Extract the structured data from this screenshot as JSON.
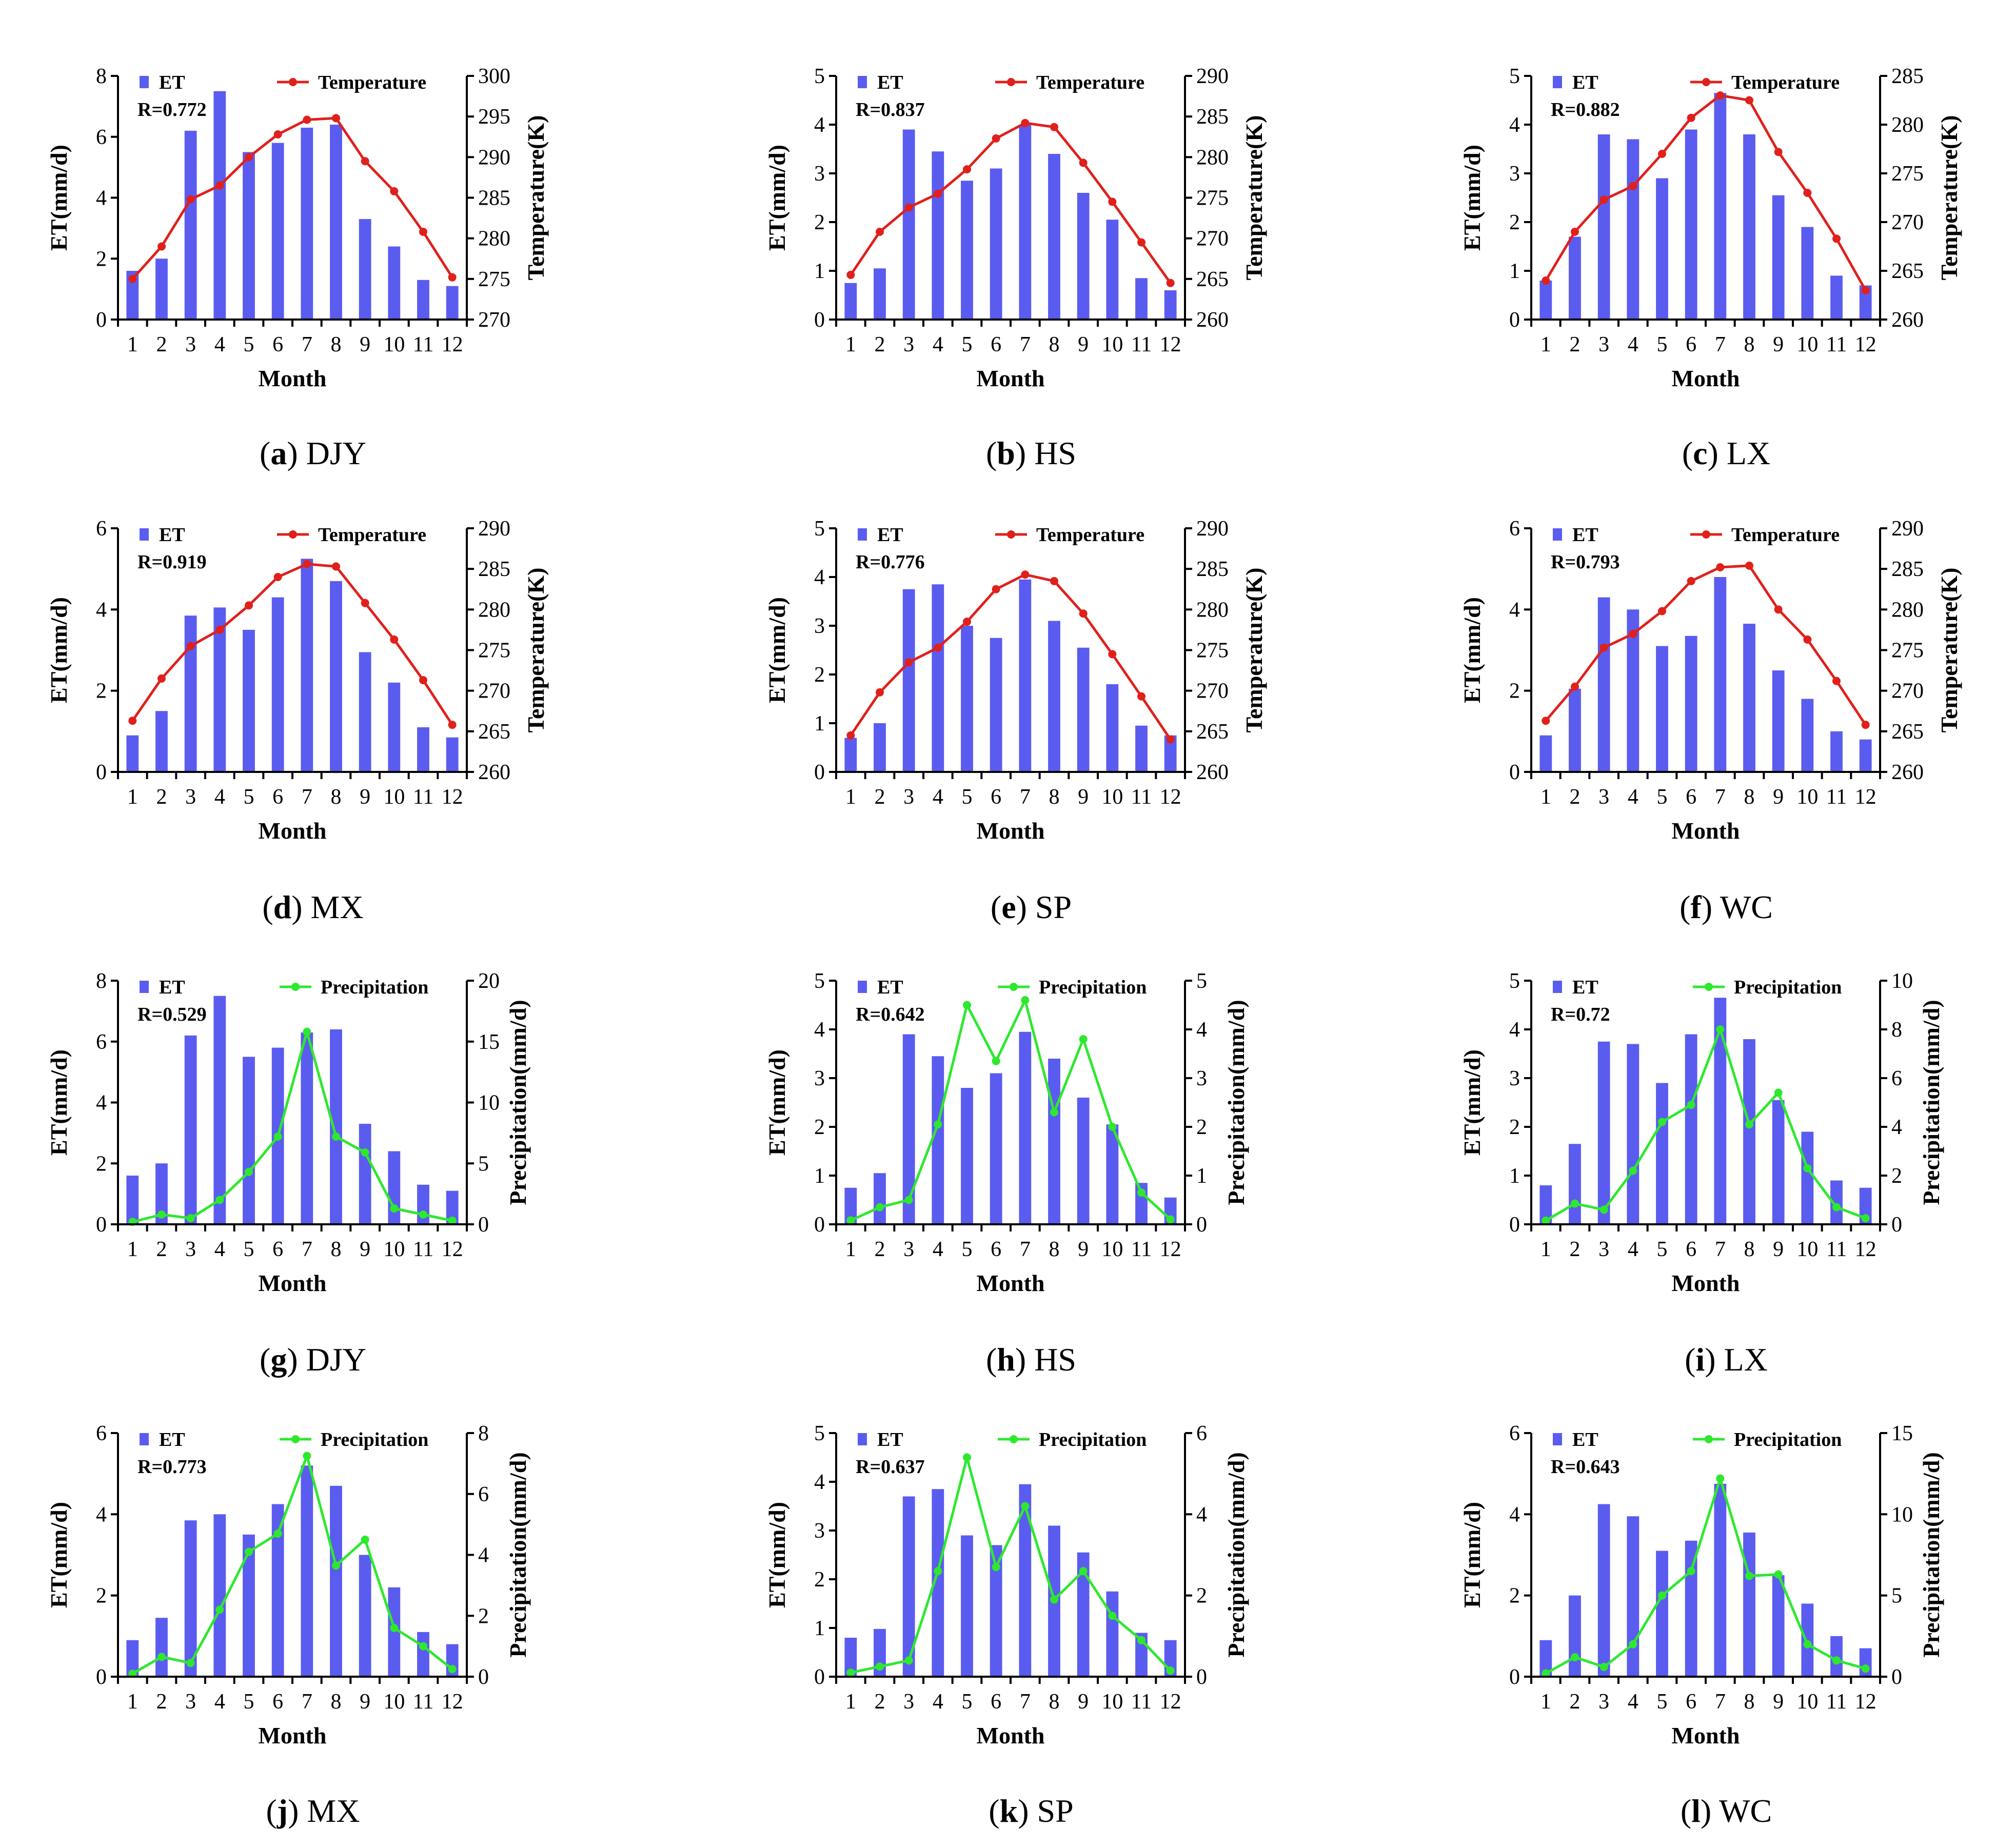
{
  "figure": {
    "colors": {
      "et_bar": "#5a5cf0",
      "temperature_line": "#e0201b",
      "precipitation_line": "#2ee82e",
      "axis": "#000000"
    }
  },
  "chart_data": [
    {
      "type": "bar",
      "panel": "a",
      "site": "DJY",
      "r_label": "R=0.772",
      "categories": [
        "1",
        "2",
        "3",
        "4",
        "5",
        "6",
        "7",
        "8",
        "9",
        "10",
        "11",
        "12"
      ],
      "xlabel": "Month",
      "ylabel": "ET(mm/d)",
      "y2label": "Temperature(K)",
      "ylim": [
        0,
        8
      ],
      "yticks": [
        "0",
        "2",
        "4",
        "6",
        "8"
      ],
      "y2lim": [
        270,
        300
      ],
      "y2ticks": [
        "270",
        "275",
        "280",
        "285",
        "290",
        "295",
        "300"
      ],
      "series": [
        {
          "name": "ET",
          "kind": "bar",
          "axis": "left",
          "values": [
            1.6,
            2.0,
            6.2,
            7.5,
            5.5,
            5.8,
            6.3,
            6.4,
            3.3,
            2.4,
            1.3,
            1.1
          ]
        },
        {
          "name": "Temperature",
          "kind": "line",
          "axis": "right",
          "values": [
            275.0,
            279.0,
            284.8,
            286.5,
            290.0,
            292.8,
            294.6,
            294.8,
            289.5,
            285.8,
            280.8,
            275.2
          ]
        }
      ]
    },
    {
      "type": "bar",
      "panel": "b",
      "site": "HS",
      "r_label": "R=0.837",
      "categories": [
        "1",
        "2",
        "3",
        "4",
        "5",
        "6",
        "7",
        "8",
        "9",
        "10",
        "11",
        "12"
      ],
      "xlabel": "Month",
      "ylabel": "ET(mm/d)",
      "y2label": "Temperature(K)",
      "ylim": [
        0,
        5
      ],
      "yticks": [
        "0",
        "1",
        "2",
        "3",
        "4",
        "5"
      ],
      "y2lim": [
        260,
        290
      ],
      "y2ticks": [
        "260",
        "265",
        "270",
        "275",
        "280",
        "285",
        "290"
      ],
      "series": [
        {
          "name": "ET",
          "kind": "bar",
          "axis": "left",
          "values": [
            0.75,
            1.05,
            3.9,
            3.45,
            2.85,
            3.1,
            4.0,
            3.4,
            2.6,
            2.05,
            0.85,
            0.6
          ]
        },
        {
          "name": "Temperature",
          "kind": "line",
          "axis": "right",
          "values": [
            265.5,
            270.8,
            273.8,
            275.5,
            278.5,
            282.3,
            284.2,
            283.7,
            279.3,
            274.5,
            269.5,
            264.5
          ]
        }
      ]
    },
    {
      "type": "bar",
      "panel": "c",
      "site": "LX",
      "r_label": "R=0.882",
      "categories": [
        "1",
        "2",
        "3",
        "4",
        "5",
        "6",
        "7",
        "8",
        "9",
        "10",
        "11",
        "12"
      ],
      "xlabel": "Month",
      "ylabel": "ET(mm/d)",
      "y2label": "Temperature(K)",
      "ylim": [
        0,
        5
      ],
      "yticks": [
        "0",
        "1",
        "2",
        "3",
        "4",
        "5"
      ],
      "y2lim": [
        260,
        285
      ],
      "y2ticks": [
        "260",
        "265",
        "270",
        "275",
        "280",
        "285"
      ],
      "series": [
        {
          "name": "ET",
          "kind": "bar",
          "axis": "left",
          "values": [
            0.8,
            1.7,
            3.8,
            3.7,
            2.9,
            3.9,
            4.65,
            3.8,
            2.55,
            1.9,
            0.9,
            0.7
          ]
        },
        {
          "name": "Temperature",
          "kind": "line",
          "axis": "right",
          "values": [
            264.0,
            269.0,
            272.3,
            273.7,
            277.0,
            280.7,
            283.0,
            282.5,
            277.2,
            273.0,
            268.3,
            263.0
          ]
        }
      ]
    },
    {
      "type": "bar",
      "panel": "d",
      "site": "MX",
      "r_label": "R=0.919",
      "categories": [
        "1",
        "2",
        "3",
        "4",
        "5",
        "6",
        "7",
        "8",
        "9",
        "10",
        "11",
        "12"
      ],
      "xlabel": "Month",
      "ylabel": "ET(mm/d)",
      "y2label": "Temperature(K)",
      "ylim": [
        0,
        6
      ],
      "yticks": [
        "0",
        "2",
        "4",
        "6"
      ],
      "y2lim": [
        260,
        290
      ],
      "y2ticks": [
        "260",
        "265",
        "270",
        "275",
        "280",
        "285",
        "290"
      ],
      "series": [
        {
          "name": "ET",
          "kind": "bar",
          "axis": "left",
          "values": [
            0.9,
            1.5,
            3.85,
            4.05,
            3.5,
            4.3,
            5.25,
            4.7,
            2.95,
            2.2,
            1.1,
            0.85
          ]
        },
        {
          "name": "Temperature",
          "kind": "line",
          "axis": "right",
          "values": [
            266.3,
            271.5,
            275.5,
            277.5,
            280.5,
            284.0,
            285.6,
            285.3,
            280.8,
            276.3,
            271.3,
            265.8
          ]
        }
      ]
    },
    {
      "type": "bar",
      "panel": "e",
      "site": "SP",
      "r_label": "R=0.776",
      "categories": [
        "1",
        "2",
        "3",
        "4",
        "5",
        "6",
        "7",
        "8",
        "9",
        "10",
        "11",
        "12"
      ],
      "xlabel": "Month",
      "ylabel": "ET(mm/d)",
      "y2label": "Temperature(K)",
      "ylim": [
        0,
        5
      ],
      "yticks": [
        "0",
        "1",
        "2",
        "3",
        "4",
        "5"
      ],
      "y2lim": [
        260,
        290
      ],
      "y2ticks": [
        "260",
        "265",
        "270",
        "275",
        "280",
        "285",
        "290"
      ],
      "series": [
        {
          "name": "ET",
          "kind": "bar",
          "axis": "left",
          "values": [
            0.7,
            1.0,
            3.75,
            3.85,
            3.0,
            2.75,
            3.95,
            3.1,
            2.55,
            1.8,
            0.95,
            0.75
          ]
        },
        {
          "name": "Temperature",
          "kind": "line",
          "axis": "right",
          "values": [
            264.5,
            269.8,
            273.5,
            275.3,
            278.5,
            282.5,
            284.3,
            283.5,
            279.5,
            274.5,
            269.3,
            264.0
          ]
        }
      ]
    },
    {
      "type": "bar",
      "panel": "f",
      "site": "WC",
      "r_label": "R=0.793",
      "categories": [
        "1",
        "2",
        "3",
        "4",
        "5",
        "6",
        "7",
        "8",
        "9",
        "10",
        "11",
        "12"
      ],
      "xlabel": "Month",
      "ylabel": "ET(mm/d)",
      "y2label": "Temperature(K)",
      "ylim": [
        0,
        6
      ],
      "yticks": [
        "0",
        "2",
        "4",
        "6"
      ],
      "y2lim": [
        260,
        290
      ],
      "y2ticks": [
        "260",
        "265",
        "270",
        "275",
        "280",
        "285",
        "290"
      ],
      "series": [
        {
          "name": "ET",
          "kind": "bar",
          "axis": "left",
          "values": [
            0.9,
            2.05,
            4.3,
            4.0,
            3.1,
            3.35,
            4.8,
            3.65,
            2.5,
            1.8,
            1.0,
            0.8
          ]
        },
        {
          "name": "Temperature",
          "kind": "line",
          "axis": "right",
          "values": [
            266.3,
            270.5,
            275.3,
            277.0,
            279.8,
            283.5,
            285.2,
            285.4,
            280.0,
            276.3,
            271.2,
            265.8
          ]
        }
      ]
    },
    {
      "type": "bar",
      "panel": "g",
      "site": "DJY",
      "r_label": "R=0.529",
      "categories": [
        "1",
        "2",
        "3",
        "4",
        "5",
        "6",
        "7",
        "8",
        "9",
        "10",
        "11",
        "12"
      ],
      "xlabel": "Month",
      "ylabel": "ET(mm/d)",
      "y2label": "Precipitation(mm/d)",
      "ylim": [
        0,
        8
      ],
      "yticks": [
        "0",
        "2",
        "4",
        "6",
        "8"
      ],
      "y2lim": [
        0,
        20
      ],
      "y2ticks": [
        "0",
        "5",
        "10",
        "15",
        "20"
      ],
      "series": [
        {
          "name": "ET",
          "kind": "bar",
          "axis": "left",
          "values": [
            1.6,
            2.0,
            6.2,
            7.5,
            5.5,
            5.8,
            6.3,
            6.4,
            3.3,
            2.4,
            1.3,
            1.1
          ]
        },
        {
          "name": "Precipitation",
          "kind": "line",
          "axis": "right",
          "values": [
            0.2,
            0.8,
            0.5,
            2.0,
            4.3,
            7.2,
            15.8,
            7.2,
            5.9,
            1.3,
            0.8,
            0.3
          ]
        }
      ]
    },
    {
      "type": "bar",
      "panel": "h",
      "site": "HS",
      "r_label": "R=0.642",
      "categories": [
        "1",
        "2",
        "3",
        "4",
        "5",
        "6",
        "7",
        "8",
        "9",
        "10",
        "11",
        "12"
      ],
      "xlabel": "Month",
      "ylabel": "ET(mm/d)",
      "y2label": "Precipitation(mm/d)",
      "ylim": [
        0,
        5
      ],
      "yticks": [
        "0",
        "1",
        "2",
        "3",
        "4",
        "5"
      ],
      "y2lim": [
        0,
        5
      ],
      "y2ticks": [
        "0",
        "1",
        "2",
        "3",
        "4",
        "5"
      ],
      "series": [
        {
          "name": "ET",
          "kind": "bar",
          "axis": "left",
          "values": [
            0.75,
            1.05,
            3.9,
            3.45,
            2.8,
            3.1,
            3.95,
            3.4,
            2.6,
            2.05,
            0.85,
            0.55
          ]
        },
        {
          "name": "Precipitation",
          "kind": "line",
          "axis": "right",
          "values": [
            0.08,
            0.35,
            0.5,
            2.05,
            4.5,
            3.35,
            4.6,
            2.3,
            3.8,
            2.0,
            0.65,
            0.1
          ]
        }
      ]
    },
    {
      "type": "bar",
      "panel": "i",
      "site": "LX",
      "r_label": "R=0.72",
      "categories": [
        "1",
        "2",
        "3",
        "4",
        "5",
        "6",
        "7",
        "8",
        "9",
        "10",
        "11",
        "12"
      ],
      "xlabel": "Month",
      "ylabel": "ET(mm/d)",
      "y2label": "Precipitation(mm/d)",
      "ylim": [
        0,
        5
      ],
      "yticks": [
        "0",
        "1",
        "2",
        "3",
        "4",
        "5"
      ],
      "y2lim": [
        0,
        10
      ],
      "y2ticks": [
        "0",
        "2",
        "4",
        "6",
        "8",
        "10"
      ],
      "series": [
        {
          "name": "ET",
          "kind": "bar",
          "axis": "left",
          "values": [
            0.8,
            1.65,
            3.75,
            3.7,
            2.9,
            3.9,
            4.65,
            3.8,
            2.55,
            1.9,
            0.9,
            0.75
          ]
        },
        {
          "name": "Precipitation",
          "kind": "line",
          "axis": "right",
          "values": [
            0.15,
            0.85,
            0.6,
            2.2,
            4.2,
            4.9,
            8.0,
            4.1,
            5.4,
            2.3,
            0.7,
            0.25
          ]
        }
      ]
    },
    {
      "type": "bar",
      "panel": "j",
      "site": "MX",
      "r_label": "R=0.773",
      "categories": [
        "1",
        "2",
        "3",
        "4",
        "5",
        "6",
        "7",
        "8",
        "9",
        "10",
        "11",
        "12"
      ],
      "xlabel": "Month",
      "ylabel": "ET(mm/d)",
      "y2label": "Precipitation(mm/d)",
      "ylim": [
        0,
        6
      ],
      "yticks": [
        "0",
        "2",
        "4",
        "6"
      ],
      "y2lim": [
        0,
        8
      ],
      "y2ticks": [
        "0",
        "2",
        "4",
        "6",
        "8"
      ],
      "series": [
        {
          "name": "ET",
          "kind": "bar",
          "axis": "left",
          "values": [
            0.9,
            1.45,
            3.85,
            4.0,
            3.5,
            4.25,
            5.2,
            4.7,
            3.0,
            2.2,
            1.1,
            0.8
          ]
        },
        {
          "name": "Precipitation",
          "kind": "line",
          "axis": "right",
          "values": [
            0.1,
            0.65,
            0.45,
            2.2,
            4.1,
            4.7,
            7.25,
            3.65,
            4.5,
            1.6,
            1.0,
            0.25
          ]
        }
      ]
    },
    {
      "type": "bar",
      "panel": "k",
      "site": "SP",
      "r_label": "R=0.637",
      "categories": [
        "1",
        "2",
        "3",
        "4",
        "5",
        "6",
        "7",
        "8",
        "9",
        "10",
        "11",
        "12"
      ],
      "xlabel": "Month",
      "ylabel": "ET(mm/d)",
      "y2label": "Precipitation(mm/d)",
      "ylim": [
        0,
        5
      ],
      "yticks": [
        "0",
        "1",
        "2",
        "3",
        "4",
        "5"
      ],
      "y2lim": [
        0,
        6
      ],
      "y2ticks": [
        "0",
        "2",
        "4",
        "6"
      ],
      "series": [
        {
          "name": "ET",
          "kind": "bar",
          "axis": "left",
          "values": [
            0.8,
            0.98,
            3.7,
            3.85,
            2.9,
            2.7,
            3.95,
            3.1,
            2.55,
            1.75,
            0.9,
            0.75
          ]
        },
        {
          "name": "Precipitation",
          "kind": "line",
          "axis": "right",
          "values": [
            0.1,
            0.25,
            0.4,
            2.6,
            5.4,
            2.7,
            4.2,
            1.9,
            2.6,
            1.5,
            0.9,
            0.15
          ]
        }
      ]
    },
    {
      "type": "bar",
      "panel": "l",
      "site": "WC",
      "r_label": "R=0.643",
      "categories": [
        "1",
        "2",
        "3",
        "4",
        "5",
        "6",
        "7",
        "8",
        "9",
        "10",
        "11",
        "12"
      ],
      "xlabel": "Month",
      "ylabel": "ET(mm/d)",
      "y2label": "Precipitation(mm/d)",
      "ylim": [
        0,
        6
      ],
      "yticks": [
        "0",
        "2",
        "4",
        "6"
      ],
      "y2lim": [
        0,
        15
      ],
      "y2ticks": [
        "0",
        "5",
        "10",
        "15"
      ],
      "series": [
        {
          "name": "ET",
          "kind": "bar",
          "axis": "left",
          "values": [
            0.9,
            2.0,
            4.25,
            3.95,
            3.1,
            3.35,
            4.75,
            3.55,
            2.5,
            1.8,
            1.0,
            0.7
          ]
        },
        {
          "name": "Precipitation",
          "kind": "line",
          "axis": "right",
          "values": [
            0.2,
            1.2,
            0.6,
            2.0,
            5.0,
            6.5,
            12.2,
            6.2,
            6.3,
            2.0,
            1.0,
            0.5
          ]
        }
      ]
    }
  ]
}
